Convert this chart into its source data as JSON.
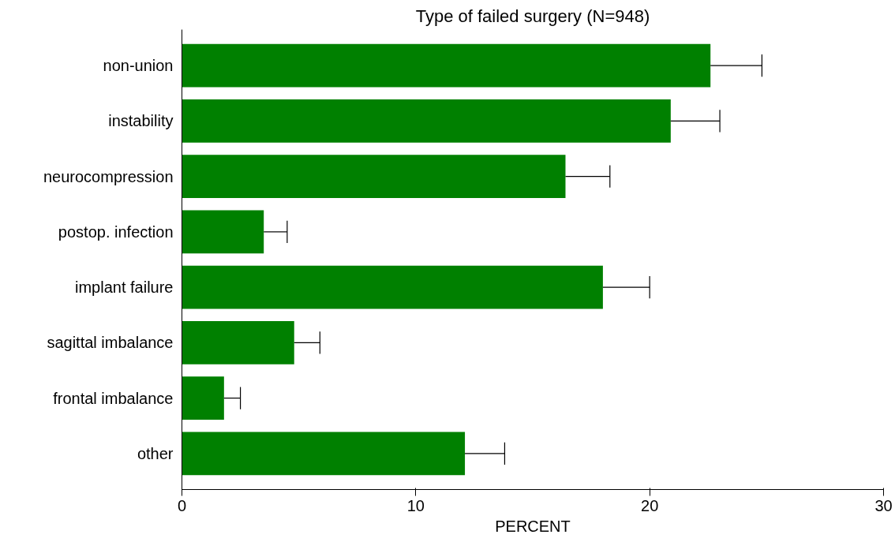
{
  "chart_data": {
    "type": "bar",
    "orientation": "horizontal",
    "title": "Type of failed surgery (N=948)",
    "xlabel": "PERCENT",
    "categories": [
      "non-union",
      "instability",
      "neurocompression",
      "postop. infection",
      "implant failure",
      "sagittal imbalance",
      "frontal imbalance",
      "other"
    ],
    "values": [
      22.6,
      20.9,
      16.4,
      3.5,
      18.0,
      4.8,
      1.8,
      12.1
    ],
    "errors": [
      [
        22.6,
        24.8
      ],
      [
        20.9,
        23.0
      ],
      [
        16.4,
        18.3
      ],
      [
        3.5,
        4.5
      ],
      [
        18.0,
        20.0
      ],
      [
        4.8,
        5.9
      ],
      [
        1.8,
        2.5
      ],
      [
        12.1,
        13.8
      ]
    ],
    "color": "#008000",
    "xlim": [
      0,
      30
    ],
    "xticks": [
      0,
      10,
      20,
      30
    ],
    "grid": false
  }
}
